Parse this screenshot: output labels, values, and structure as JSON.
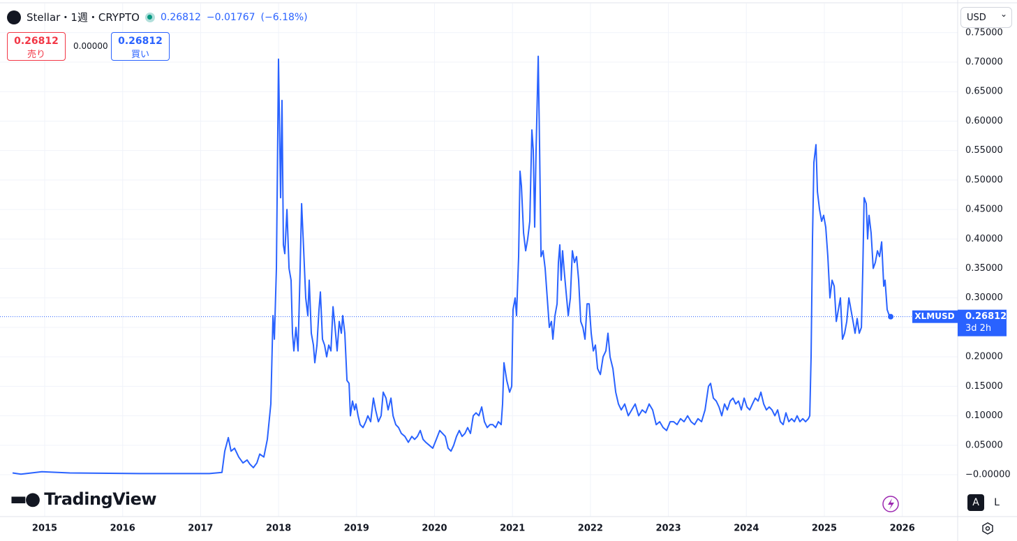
{
  "chart_data": {
    "type": "line",
    "title": "Stellar・1週・CRYPTO",
    "price": "0.26812",
    "change": "−0.01767",
    "change_pct": "(−6.18%)",
    "sell_price": "0.26812",
    "sell_label": "売り",
    "spread": "0.00000",
    "buy_price": "0.26812",
    "buy_label": "買い",
    "currency": "USD",
    "brand": "TradingView",
    "scale_buttons": [
      "A",
      "L"
    ],
    "color": "#2962ff",
    "grid": true,
    "price_line": {
      "name": "XLMUSD",
      "value": 0.26812,
      "countdown": "3d 2h"
    },
    "xlim": [
      2014.427,
      2026.71
    ],
    "xticks": [
      2015,
      2016,
      2017,
      2018,
      2019,
      2020,
      2021,
      2022,
      2023,
      2024,
      2025,
      2026
    ],
    "ylim": [
      -0.071,
      0.7995
    ],
    "yticks": [
      {
        "value": 0,
        "label": "−0.00000"
      },
      {
        "value": 0.05,
        "label": "0.05000"
      },
      {
        "value": 0.1,
        "label": "0.10000"
      },
      {
        "value": 0.15,
        "label": "0.15000"
      },
      {
        "value": 0.2,
        "label": "0.20000"
      },
      {
        "value": 0.25,
        "label": "0.25000"
      },
      {
        "value": 0.3,
        "label": "0.30000"
      },
      {
        "value": 0.35,
        "label": "0.35000"
      },
      {
        "value": 0.4,
        "label": "0.40000"
      },
      {
        "value": 0.45,
        "label": "0.45000"
      },
      {
        "value": 0.5,
        "label": "0.50000"
      },
      {
        "value": 0.55,
        "label": "0.55000"
      },
      {
        "value": 0.6,
        "label": "0.60000"
      },
      {
        "value": 0.65,
        "label": "0.65000"
      },
      {
        "value": 0.7,
        "label": "0.70000"
      },
      {
        "value": 0.75,
        "label": "0.75000"
      }
    ],
    "x": [
      2014.588,
      2014.696,
      2014.964,
      2015.322,
      2016.218,
      2017.113,
      2017.274,
      2017.31,
      2017.355,
      2017.39,
      2017.435,
      2017.489,
      2017.543,
      2017.596,
      2017.632,
      2017.677,
      2017.722,
      2017.758,
      2017.811,
      2017.856,
      2017.901,
      2017.928,
      2017.946,
      2017.972,
      2017.999,
      2018.017,
      2018.026,
      2018.044,
      2018.062,
      2018.08,
      2018.107,
      2018.134,
      2018.16,
      2018.178,
      2018.196,
      2018.223,
      2018.25,
      2018.277,
      2018.295,
      2018.322,
      2018.348,
      2018.375,
      2018.393,
      2018.42,
      2018.447,
      2018.465,
      2018.492,
      2018.518,
      2018.536,
      2018.563,
      2018.59,
      2018.617,
      2018.644,
      2018.671,
      2018.698,
      2018.724,
      2018.751,
      2018.778,
      2018.805,
      2018.823,
      2018.85,
      2018.877,
      2018.904,
      2018.921,
      2018.948,
      2018.975,
      2018.993,
      2019.02,
      2019.047,
      2019.083,
      2019.118,
      2019.145,
      2019.181,
      2019.217,
      2019.244,
      2019.28,
      2019.315,
      2019.342,
      2019.378,
      2019.405,
      2019.441,
      2019.468,
      2019.503,
      2019.539,
      2019.575,
      2019.62,
      2019.664,
      2019.709,
      2019.745,
      2019.781,
      2019.817,
      2019.853,
      2019.888,
      2019.933,
      2019.978,
      2020.023,
      2020.067,
      2020.103,
      2020.139,
      2020.175,
      2020.211,
      2020.246,
      2020.282,
      2020.318,
      2020.354,
      2020.39,
      2020.425,
      2020.461,
      2020.497,
      2020.533,
      2020.569,
      2020.605,
      2020.64,
      2020.676,
      2020.712,
      2020.748,
      2020.784,
      2020.819,
      2020.855,
      2020.873,
      2020.891,
      2020.927,
      2020.963,
      2020.99,
      2021.007,
      2021.034,
      2021.052,
      2021.079,
      2021.097,
      2021.115,
      2021.142,
      2021.169,
      2021.195,
      2021.222,
      2021.249,
      2021.267,
      2021.285,
      2021.303,
      2021.33,
      2021.348,
      2021.366,
      2021.392,
      2021.419,
      2021.446,
      2021.473,
      2021.5,
      2021.518,
      2021.545,
      2021.572,
      2021.589,
      2021.607,
      2021.625,
      2021.643,
      2021.661,
      2021.688,
      2021.715,
      2021.742,
      2021.768,
      2021.795,
      2021.822,
      2021.849,
      2021.876,
      2021.903,
      2021.93,
      2021.957,
      2021.983,
      2022.01,
      2022.037,
      2022.064,
      2022.091,
      2022.127,
      2022.162,
      2022.198,
      2022.225,
      2022.252,
      2022.288,
      2022.324,
      2022.359,
      2022.395,
      2022.44,
      2022.485,
      2022.529,
      2022.574,
      2022.619,
      2022.664,
      2022.708,
      2022.753,
      2022.798,
      2022.843,
      2022.888,
      2022.932,
      2022.977,
      2023.022,
      2023.067,
      2023.111,
      2023.156,
      2023.201,
      2023.246,
      2023.291,
      2023.335,
      2023.38,
      2023.425,
      2023.47,
      2023.514,
      2023.541,
      2023.577,
      2023.613,
      2023.649,
      2023.684,
      2023.72,
      2023.756,
      2023.792,
      2023.828,
      2023.863,
      2023.899,
      2023.935,
      2023.971,
      2024.007,
      2024.043,
      2024.078,
      2024.114,
      2024.15,
      2024.186,
      2024.222,
      2024.257,
      2024.293,
      2024.329,
      2024.365,
      2024.401,
      2024.436,
      2024.472,
      2024.508,
      2024.544,
      2024.58,
      2024.616,
      2024.651,
      2024.687,
      2024.723,
      2024.759,
      2024.795,
      2024.813,
      2024.83,
      2024.848,
      2024.866,
      2024.893,
      2024.911,
      2024.938,
      2024.965,
      2024.991,
      2025.018,
      2025.045,
      2025.072,
      2025.099,
      2025.126,
      2025.153,
      2025.18,
      2025.206,
      2025.233,
      2025.26,
      2025.287,
      2025.314,
      2025.341,
      2025.368,
      2025.394,
      2025.421,
      2025.448,
      2025.475,
      2025.493,
      2025.51,
      2025.537,
      2025.555,
      2025.573,
      2025.6,
      2025.627,
      2025.654,
      2025.681,
      2025.708,
      2025.735,
      2025.762,
      2025.779,
      2025.806,
      2025.833,
      2025.851
    ],
    "values": [
      0.003,
      0.001,
      0.005,
      0.003,
      0.002,
      0.002,
      0.004,
      0.04,
      0.063,
      0.04,
      0.045,
      0.03,
      0.02,
      0.025,
      0.018,
      0.012,
      0.02,
      0.035,
      0.03,
      0.06,
      0.12,
      0.27,
      0.23,
      0.35,
      0.705,
      0.55,
      0.47,
      0.635,
      0.39,
      0.375,
      0.45,
      0.35,
      0.33,
      0.24,
      0.21,
      0.25,
      0.21,
      0.35,
      0.46,
      0.38,
      0.3,
      0.27,
      0.33,
      0.24,
      0.22,
      0.19,
      0.22,
      0.28,
      0.31,
      0.23,
      0.22,
      0.2,
      0.22,
      0.21,
      0.285,
      0.25,
      0.21,
      0.26,
      0.24,
      0.27,
      0.24,
      0.16,
      0.155,
      0.1,
      0.125,
      0.11,
      0.12,
      0.1,
      0.085,
      0.08,
      0.09,
      0.1,
      0.09,
      0.13,
      0.11,
      0.09,
      0.1,
      0.14,
      0.13,
      0.11,
      0.13,
      0.1,
      0.085,
      0.08,
      0.07,
      0.065,
      0.055,
      0.065,
      0.06,
      0.065,
      0.075,
      0.06,
      0.055,
      0.05,
      0.045,
      0.06,
      0.075,
      0.07,
      0.065,
      0.045,
      0.04,
      0.05,
      0.065,
      0.075,
      0.065,
      0.07,
      0.08,
      0.07,
      0.1,
      0.105,
      0.1,
      0.115,
      0.09,
      0.08,
      0.085,
      0.085,
      0.08,
      0.09,
      0.085,
      0.12,
      0.19,
      0.16,
      0.14,
      0.15,
      0.28,
      0.3,
      0.27,
      0.37,
      0.515,
      0.49,
      0.41,
      0.38,
      0.4,
      0.43,
      0.585,
      0.55,
      0.42,
      0.55,
      0.71,
      0.55,
      0.37,
      0.38,
      0.35,
      0.3,
      0.25,
      0.26,
      0.23,
      0.27,
      0.29,
      0.36,
      0.39,
      0.33,
      0.38,
      0.35,
      0.31,
      0.27,
      0.3,
      0.38,
      0.36,
      0.37,
      0.33,
      0.26,
      0.25,
      0.23,
      0.29,
      0.29,
      0.24,
      0.21,
      0.22,
      0.18,
      0.17,
      0.2,
      0.21,
      0.24,
      0.2,
      0.18,
      0.14,
      0.12,
      0.11,
      0.12,
      0.1,
      0.11,
      0.12,
      0.1,
      0.11,
      0.105,
      0.12,
      0.11,
      0.085,
      0.09,
      0.08,
      0.075,
      0.09,
      0.09,
      0.085,
      0.095,
      0.09,
      0.1,
      0.09,
      0.085,
      0.095,
      0.09,
      0.11,
      0.15,
      0.155,
      0.13,
      0.125,
      0.115,
      0.1,
      0.12,
      0.11,
      0.125,
      0.13,
      0.12,
      0.125,
      0.11,
      0.13,
      0.115,
      0.11,
      0.12,
      0.13,
      0.125,
      0.14,
      0.12,
      0.11,
      0.115,
      0.11,
      0.1,
      0.11,
      0.09,
      0.085,
      0.105,
      0.09,
      0.095,
      0.09,
      0.1,
      0.09,
      0.095,
      0.09,
      0.095,
      0.1,
      0.2,
      0.4,
      0.53,
      0.56,
      0.48,
      0.45,
      0.43,
      0.44,
      0.42,
      0.37,
      0.3,
      0.33,
      0.32,
      0.26,
      0.28,
      0.3,
      0.23,
      0.24,
      0.26,
      0.3,
      0.28,
      0.26,
      0.24,
      0.265,
      0.24,
      0.25,
      0.35,
      0.47,
      0.46,
      0.4,
      0.44,
      0.41,
      0.35,
      0.36,
      0.38,
      0.37,
      0.395,
      0.32,
      0.33,
      0.28,
      0.27,
      0.26812
    ]
  }
}
